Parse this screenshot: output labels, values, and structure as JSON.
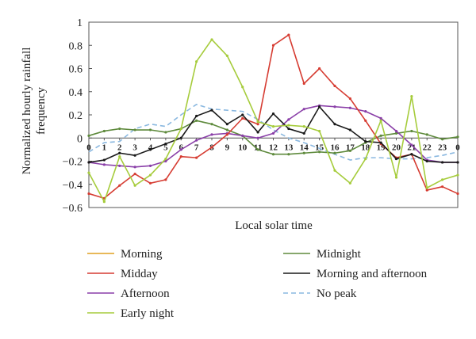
{
  "chart_data": {
    "type": "line",
    "title": "",
    "xlabel": "Local solar time",
    "ylabel": "Normalized hourly rainfall frequency",
    "xlim": [
      0,
      24
    ],
    "ylim": [
      -0.6,
      1.0
    ],
    "yticks": [
      -0.6,
      -0.4,
      -0.2,
      0,
      0.2,
      0.4,
      0.6,
      0.8,
      1
    ],
    "ytick_labels": [
      "−0.6",
      "−0.4",
      "−0.2",
      "0",
      "0.2",
      "0.4",
      "0.6",
      "0.8",
      "1"
    ],
    "x": [
      0,
      1,
      2,
      3,
      4,
      5,
      6,
      7,
      8,
      9,
      10,
      11,
      12,
      13,
      14,
      15,
      16,
      17,
      18,
      19,
      20,
      21,
      22,
      23,
      24
    ],
    "xtick_labels": [
      "0",
      "1",
      "2",
      "3",
      "4",
      "5",
      "6",
      "7",
      "8",
      "9",
      "10",
      "11",
      "12",
      "13",
      "14",
      "15",
      "16",
      "17",
      "18",
      "19",
      "20",
      "21",
      "22",
      "23",
      "0"
    ],
    "grid": false,
    "legend_position": "bottom",
    "series": [
      {
        "name": "Morning",
        "color": "#e0a020",
        "values": [
          null,
          null,
          null,
          null,
          null,
          null,
          null,
          null,
          null,
          null,
          null,
          null,
          null,
          null,
          null,
          null,
          null,
          null,
          null,
          null,
          null,
          null,
          null,
          null,
          null
        ]
      },
      {
        "name": "Midday",
        "color": "#d63c32",
        "values": [
          -0.48,
          -0.52,
          -0.41,
          -0.31,
          -0.39,
          -0.36,
          -0.16,
          -0.17,
          -0.08,
          0.03,
          0.17,
          0.12,
          0.8,
          0.89,
          0.47,
          0.6,
          0.45,
          0.34,
          0.15,
          -0.05,
          -0.17,
          -0.14,
          -0.45,
          -0.42,
          -0.48
        ]
      },
      {
        "name": "Afternoon",
        "color": "#8a3fa8",
        "values": [
          -0.21,
          -0.23,
          -0.24,
          -0.25,
          -0.24,
          -0.2,
          -0.1,
          -0.02,
          0.03,
          0.04,
          0.02,
          0.0,
          0.04,
          0.16,
          0.25,
          0.28,
          0.27,
          0.26,
          0.23,
          0.17,
          0.06,
          -0.06,
          -0.19,
          -0.21,
          -0.21
        ]
      },
      {
        "name": "Early night",
        "color": "#a6cc3c",
        "values": [
          -0.3,
          -0.55,
          -0.16,
          -0.41,
          -0.32,
          -0.18,
          0.08,
          0.66,
          0.85,
          0.71,
          0.44,
          0.14,
          0.1,
          0.11,
          0.1,
          0.06,
          -0.28,
          -0.39,
          -0.18,
          0.15,
          -0.34,
          0.36,
          -0.43,
          -0.36,
          -0.32
        ]
      },
      {
        "name": "Midnight",
        "color": "#5e8a3c",
        "values": [
          0.02,
          0.06,
          0.08,
          0.07,
          0.07,
          0.05,
          0.08,
          0.15,
          0.12,
          0.07,
          0.02,
          -0.1,
          -0.14,
          -0.14,
          -0.13,
          -0.12,
          -0.13,
          -0.11,
          -0.04,
          0.02,
          0.04,
          0.06,
          0.03,
          -0.01,
          0.01
        ]
      },
      {
        "name": "Morning and afternoon",
        "color": "#1a1a1a",
        "values": [
          -0.21,
          -0.19,
          -0.13,
          -0.15,
          -0.1,
          -0.05,
          0.0,
          0.19,
          0.24,
          0.12,
          0.2,
          0.05,
          0.21,
          0.08,
          0.04,
          0.27,
          0.12,
          0.07,
          -0.03,
          -0.04,
          -0.18,
          -0.14,
          -0.2,
          -0.21,
          -0.21
        ]
      },
      {
        "name": "No peak",
        "color": "#8ab8e0",
        "dashed": true,
        "values": [
          -0.12,
          -0.04,
          -0.03,
          0.08,
          0.12,
          0.1,
          0.2,
          0.29,
          0.25,
          0.24,
          0.23,
          0.16,
          0.07,
          0.0,
          -0.04,
          -0.09,
          -0.14,
          -0.19,
          -0.17,
          -0.17,
          -0.18,
          -0.18,
          -0.17,
          -0.15,
          -0.12
        ]
      }
    ]
  }
}
